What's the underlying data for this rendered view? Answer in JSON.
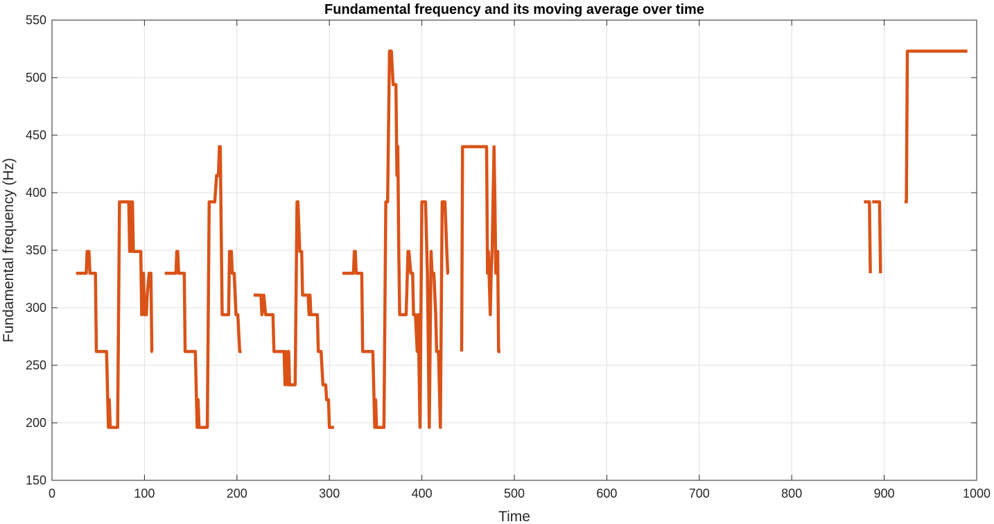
{
  "chart_data": {
    "type": "line",
    "title": "Fundamental frequency and its moving average over time",
    "xlabel": "Time",
    "ylabel": "Fundamental frequency (Hz)",
    "xlim": [
      0,
      1000
    ],
    "ylim": [
      150,
      550
    ],
    "xticks": [
      "0",
      "100",
      "200",
      "300",
      "400",
      "500",
      "600",
      "700",
      "800",
      "900",
      "1000"
    ],
    "yticks": [
      "150",
      "200",
      "250",
      "300",
      "350",
      "400",
      "450",
      "500",
      "550"
    ],
    "grid": true,
    "series": [
      {
        "color": "#d95319",
        "segments": [
          [
            [
              26,
              330
            ],
            [
              37,
              330
            ],
            [
              38,
              349
            ],
            [
              40,
              349
            ],
            [
              41,
              330
            ],
            [
              47,
              330
            ],
            [
              48,
              262
            ],
            [
              59,
              262
            ],
            [
              61,
              196
            ],
            [
              62,
              220
            ],
            [
              63,
              196
            ],
            [
              71,
              196
            ],
            [
              73,
              392
            ],
            [
              83,
              392
            ],
            [
              84,
              349
            ],
            [
              85,
              392
            ],
            [
              86,
              349
            ],
            [
              87,
              392
            ],
            [
              88,
              349
            ],
            [
              96,
              349
            ],
            [
              97,
              294
            ],
            [
              99,
              330
            ],
            [
              100,
              294
            ],
            [
              102,
              294
            ],
            [
              103,
              311
            ],
            [
              105,
              330
            ],
            [
              107,
              330
            ],
            [
              108,
              262
            ],
            [
              109,
              262
            ]
          ],
          [
            [
              122,
              330
            ],
            [
              134,
              330
            ],
            [
              135,
              349
            ],
            [
              136,
              349
            ],
            [
              137,
              330
            ],
            [
              143,
              330
            ],
            [
              144,
              262
            ],
            [
              155,
              262
            ],
            [
              157,
              196
            ],
            [
              158,
              220
            ],
            [
              159,
              196
            ],
            [
              168,
              196
            ],
            [
              170,
              392
            ],
            [
              176,
              392
            ],
            [
              178,
              415
            ],
            [
              180,
              415
            ],
            [
              181,
              440
            ],
            [
              182,
              440
            ],
            [
              184,
              294
            ],
            [
              191,
              294
            ],
            [
              192,
              349
            ],
            [
              194,
              349
            ],
            [
              195,
              330
            ],
            [
              197,
              330
            ],
            [
              199,
              294
            ],
            [
              201,
              294
            ],
            [
              203,
              262
            ],
            [
              205,
              262
            ]
          ],
          [
            [
              218,
              311
            ],
            [
              226,
              311
            ],
            [
              227,
              294
            ],
            [
              229,
              311
            ],
            [
              231,
              294
            ],
            [
              233,
              294
            ],
            [
              234,
              294
            ],
            [
              239,
              294
            ],
            [
              240,
              262
            ],
            [
              251,
              262
            ],
            [
              252,
              233
            ],
            [
              253,
              262
            ],
            [
              255,
              233
            ],
            [
              256,
              262
            ],
            [
              257,
              233
            ],
            [
              263,
              233
            ],
            [
              265,
              392
            ],
            [
              266,
              392
            ],
            [
              268,
              349
            ],
            [
              270,
              349
            ],
            [
              271,
              311
            ],
            [
              277,
              311
            ],
            [
              278,
              294
            ],
            [
              279,
              311
            ],
            [
              280,
              294
            ],
            [
              287,
              294
            ],
            [
              288,
              262
            ],
            [
              291,
              262
            ],
            [
              293,
              233
            ],
            [
              296,
              233
            ],
            [
              297,
              220
            ],
            [
              299,
              220
            ],
            [
              300,
              196
            ],
            [
              305,
              196
            ]
          ],
          [
            [
              314,
              330
            ],
            [
              326,
              330
            ],
            [
              327,
              349
            ],
            [
              328,
              349
            ],
            [
              329,
              330
            ],
            [
              335,
              330
            ],
            [
              336,
              262
            ],
            [
              347,
              262
            ],
            [
              349,
              196
            ],
            [
              350,
              220
            ],
            [
              351,
              196
            ],
            [
              359,
              196
            ],
            [
              361,
              392
            ],
            [
              363,
              392
            ],
            [
              365,
              523
            ],
            [
              367,
              523
            ],
            [
              369,
              494
            ],
            [
              372,
              494
            ],
            [
              373,
              415
            ],
            [
              374,
              440
            ],
            [
              375,
              349
            ],
            [
              376,
              294
            ],
            [
              383,
              294
            ],
            [
              385,
              349
            ],
            [
              386,
              349
            ],
            [
              388,
              330
            ],
            [
              390,
              330
            ],
            [
              391,
              294
            ],
            [
              393,
              294
            ],
            [
              395,
              262
            ],
            [
              396,
              294
            ],
            [
              398,
              196
            ],
            [
              400,
              392
            ],
            [
              404,
              392
            ],
            [
              406,
              330
            ],
            [
              408,
              196
            ],
            [
              410,
              349
            ],
            [
              411,
              330
            ],
            [
              413,
              330
            ],
            [
              415,
              294
            ],
            [
              416,
              262
            ],
            [
              418,
              262
            ],
            [
              420,
              196
            ],
            [
              422,
              392
            ],
            [
              425,
              392
            ],
            [
              427,
              349
            ],
            [
              428,
              330
            ],
            [
              429,
              330
            ]
          ],
          [
            [
              443,
              262
            ],
            [
              444,
              440
            ],
            [
              470,
              440
            ],
            [
              471,
              330
            ],
            [
              472,
              349
            ],
            [
              474,
              294
            ],
            [
              475,
              330
            ],
            [
              476,
              349
            ],
            [
              478,
              440
            ],
            [
              479,
              392
            ],
            [
              480,
              330
            ],
            [
              482,
              349
            ],
            [
              483,
              262
            ],
            [
              485,
              262
            ]
          ],
          [
            [
              878,
              392
            ],
            [
              884,
              392
            ],
            [
              885,
              330
            ]
          ],
          [
            [
              887,
              392
            ],
            [
              895,
              392
            ],
            [
              896,
              330
            ]
          ],
          [
            [
              922,
              392
            ],
            [
              924,
              392
            ],
            [
              925,
              523
            ],
            [
              990,
              523
            ]
          ]
        ]
      }
    ]
  }
}
